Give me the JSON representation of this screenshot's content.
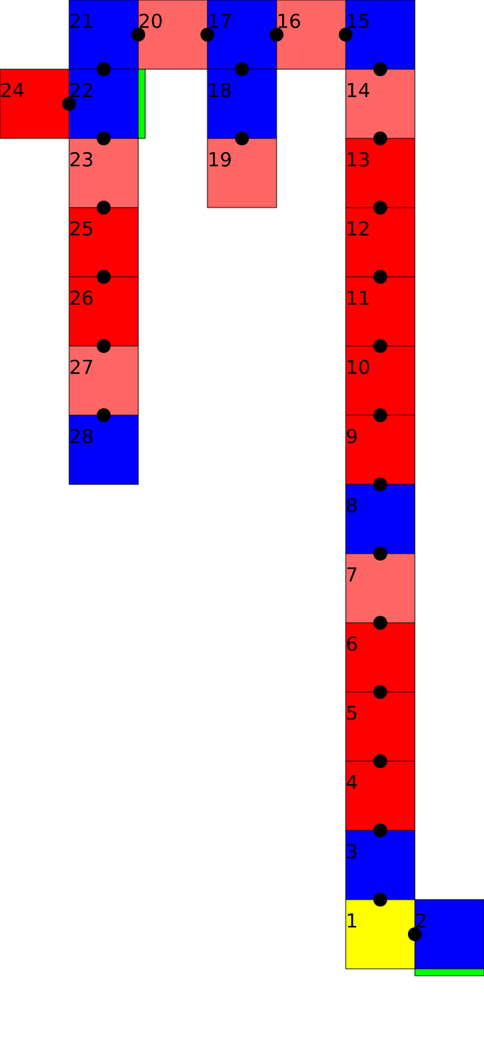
{
  "colors": {
    "blue": "#0000ff",
    "red": "#ff0000",
    "light_red": "#ff6666",
    "yellow": "#ffff00",
    "green": "#00ff00",
    "node": "#000000",
    "border": "#000000"
  },
  "cells": [
    {
      "label": "1",
      "color": "yellow"
    },
    {
      "label": "2",
      "color": "blue"
    },
    {
      "label": "3",
      "color": "blue"
    },
    {
      "label": "4",
      "color": "red"
    },
    {
      "label": "5",
      "color": "red"
    },
    {
      "label": "6",
      "color": "red"
    },
    {
      "label": "7",
      "color": "light_red"
    },
    {
      "label": "8",
      "color": "blue"
    },
    {
      "label": "9",
      "color": "red"
    },
    {
      "label": "10",
      "color": "red"
    },
    {
      "label": "11",
      "color": "red"
    },
    {
      "label": "12",
      "color": "red"
    },
    {
      "label": "13",
      "color": "red"
    },
    {
      "label": "14",
      "color": "light_red"
    },
    {
      "label": "15",
      "color": "blue"
    },
    {
      "label": "16",
      "color": "light_red"
    },
    {
      "label": "17",
      "color": "blue"
    },
    {
      "label": "18",
      "color": "blue"
    },
    {
      "label": "19",
      "color": "light_red"
    },
    {
      "label": "20",
      "color": "light_red"
    },
    {
      "label": "21",
      "color": "blue"
    },
    {
      "label": "22",
      "color": "blue"
    },
    {
      "label": "23",
      "color": "light_red"
    },
    {
      "label": "24",
      "color": "red"
    },
    {
      "label": "25",
      "color": "red"
    },
    {
      "label": "26",
      "color": "red"
    },
    {
      "label": "27",
      "color": "light_red"
    },
    {
      "label": "28",
      "color": "blue"
    }
  ],
  "connections": [
    [
      "1",
      "2"
    ],
    [
      "1",
      "3"
    ],
    [
      "3",
      "4"
    ],
    [
      "4",
      "5"
    ],
    [
      "5",
      "6"
    ],
    [
      "6",
      "7"
    ],
    [
      "7",
      "8"
    ],
    [
      "8",
      "9"
    ],
    [
      "9",
      "10"
    ],
    [
      "10",
      "11"
    ],
    [
      "11",
      "12"
    ],
    [
      "12",
      "13"
    ],
    [
      "13",
      "14"
    ],
    [
      "14",
      "15"
    ],
    [
      "15",
      "16"
    ],
    [
      "16",
      "17"
    ],
    [
      "17",
      "18"
    ],
    [
      "18",
      "19"
    ],
    [
      "17",
      "20"
    ],
    [
      "20",
      "21"
    ],
    [
      "21",
      "22"
    ],
    [
      "22",
      "24"
    ],
    [
      "22",
      "23"
    ],
    [
      "23",
      "25"
    ],
    [
      "25",
      "26"
    ],
    [
      "26",
      "27"
    ],
    [
      "27",
      "28"
    ]
  ]
}
